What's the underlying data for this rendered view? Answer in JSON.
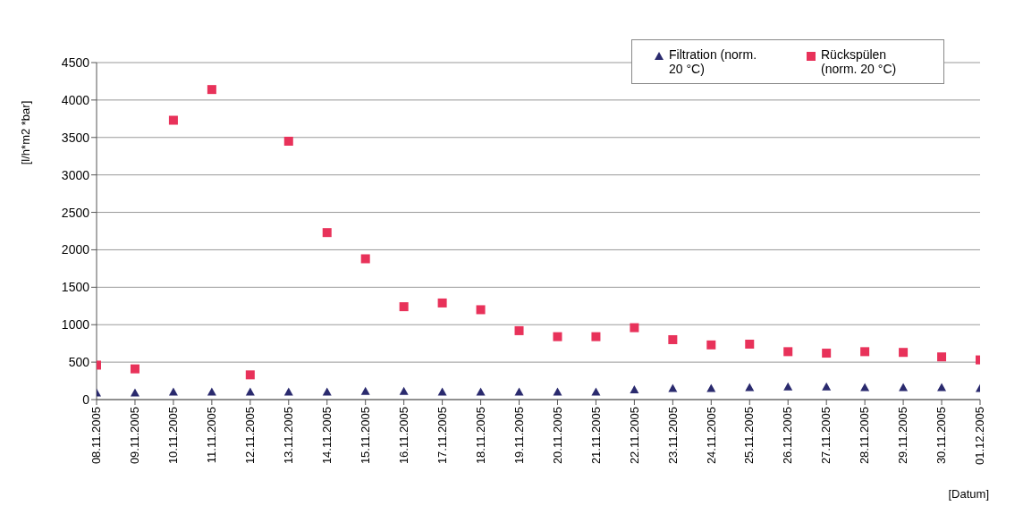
{
  "chart_data": {
    "type": "scatter",
    "ylabel": "[l/h*m2 *bar]",
    "xlabel": "[Datum]",
    "categories": [
      "08.11.2005",
      "09.11.2005",
      "10.11.2005",
      "11.11.2005",
      "12.11.2005",
      "13.11.2005",
      "14.11.2005",
      "15.11.2005",
      "16.11.2005",
      "17.11.2005",
      "18.11.2005",
      "19.11.2005",
      "20.11.2005",
      "21.11.2005",
      "22.11.2005",
      "23.11.2005",
      "24.11.2005",
      "25.11.2005",
      "26.11.2005",
      "27.11.2005",
      "28.11.2005",
      "29.11.2005",
      "30.11.2005",
      "01.12.2005"
    ],
    "series": [
      {
        "name": "Filtration (norm. 20 °C)",
        "color": "#2a2a6e",
        "marker": "triangle",
        "values": [
          90,
          90,
          100,
          100,
          100,
          100,
          100,
          110,
          110,
          100,
          100,
          100,
          100,
          100,
          130,
          150,
          150,
          160,
          170,
          170,
          160,
          160,
          160,
          150
        ]
      },
      {
        "name": "Rückspülen (norm. 20 °C)",
        "color": "#e8325a",
        "marker": "square",
        "values": [
          460,
          410,
          3730,
          4140,
          330,
          3450,
          2230,
          1880,
          1240,
          1290,
          1200,
          920,
          840,
          840,
          960,
          800,
          730,
          740,
          640,
          620,
          640,
          630,
          570,
          530
        ]
      }
    ],
    "ylim": [
      0,
      4500
    ],
    "yticks": [
      0,
      500,
      1000,
      1500,
      2000,
      2500,
      3000,
      3500,
      4000,
      4500
    ],
    "grid": "y",
    "legend": "top right"
  }
}
